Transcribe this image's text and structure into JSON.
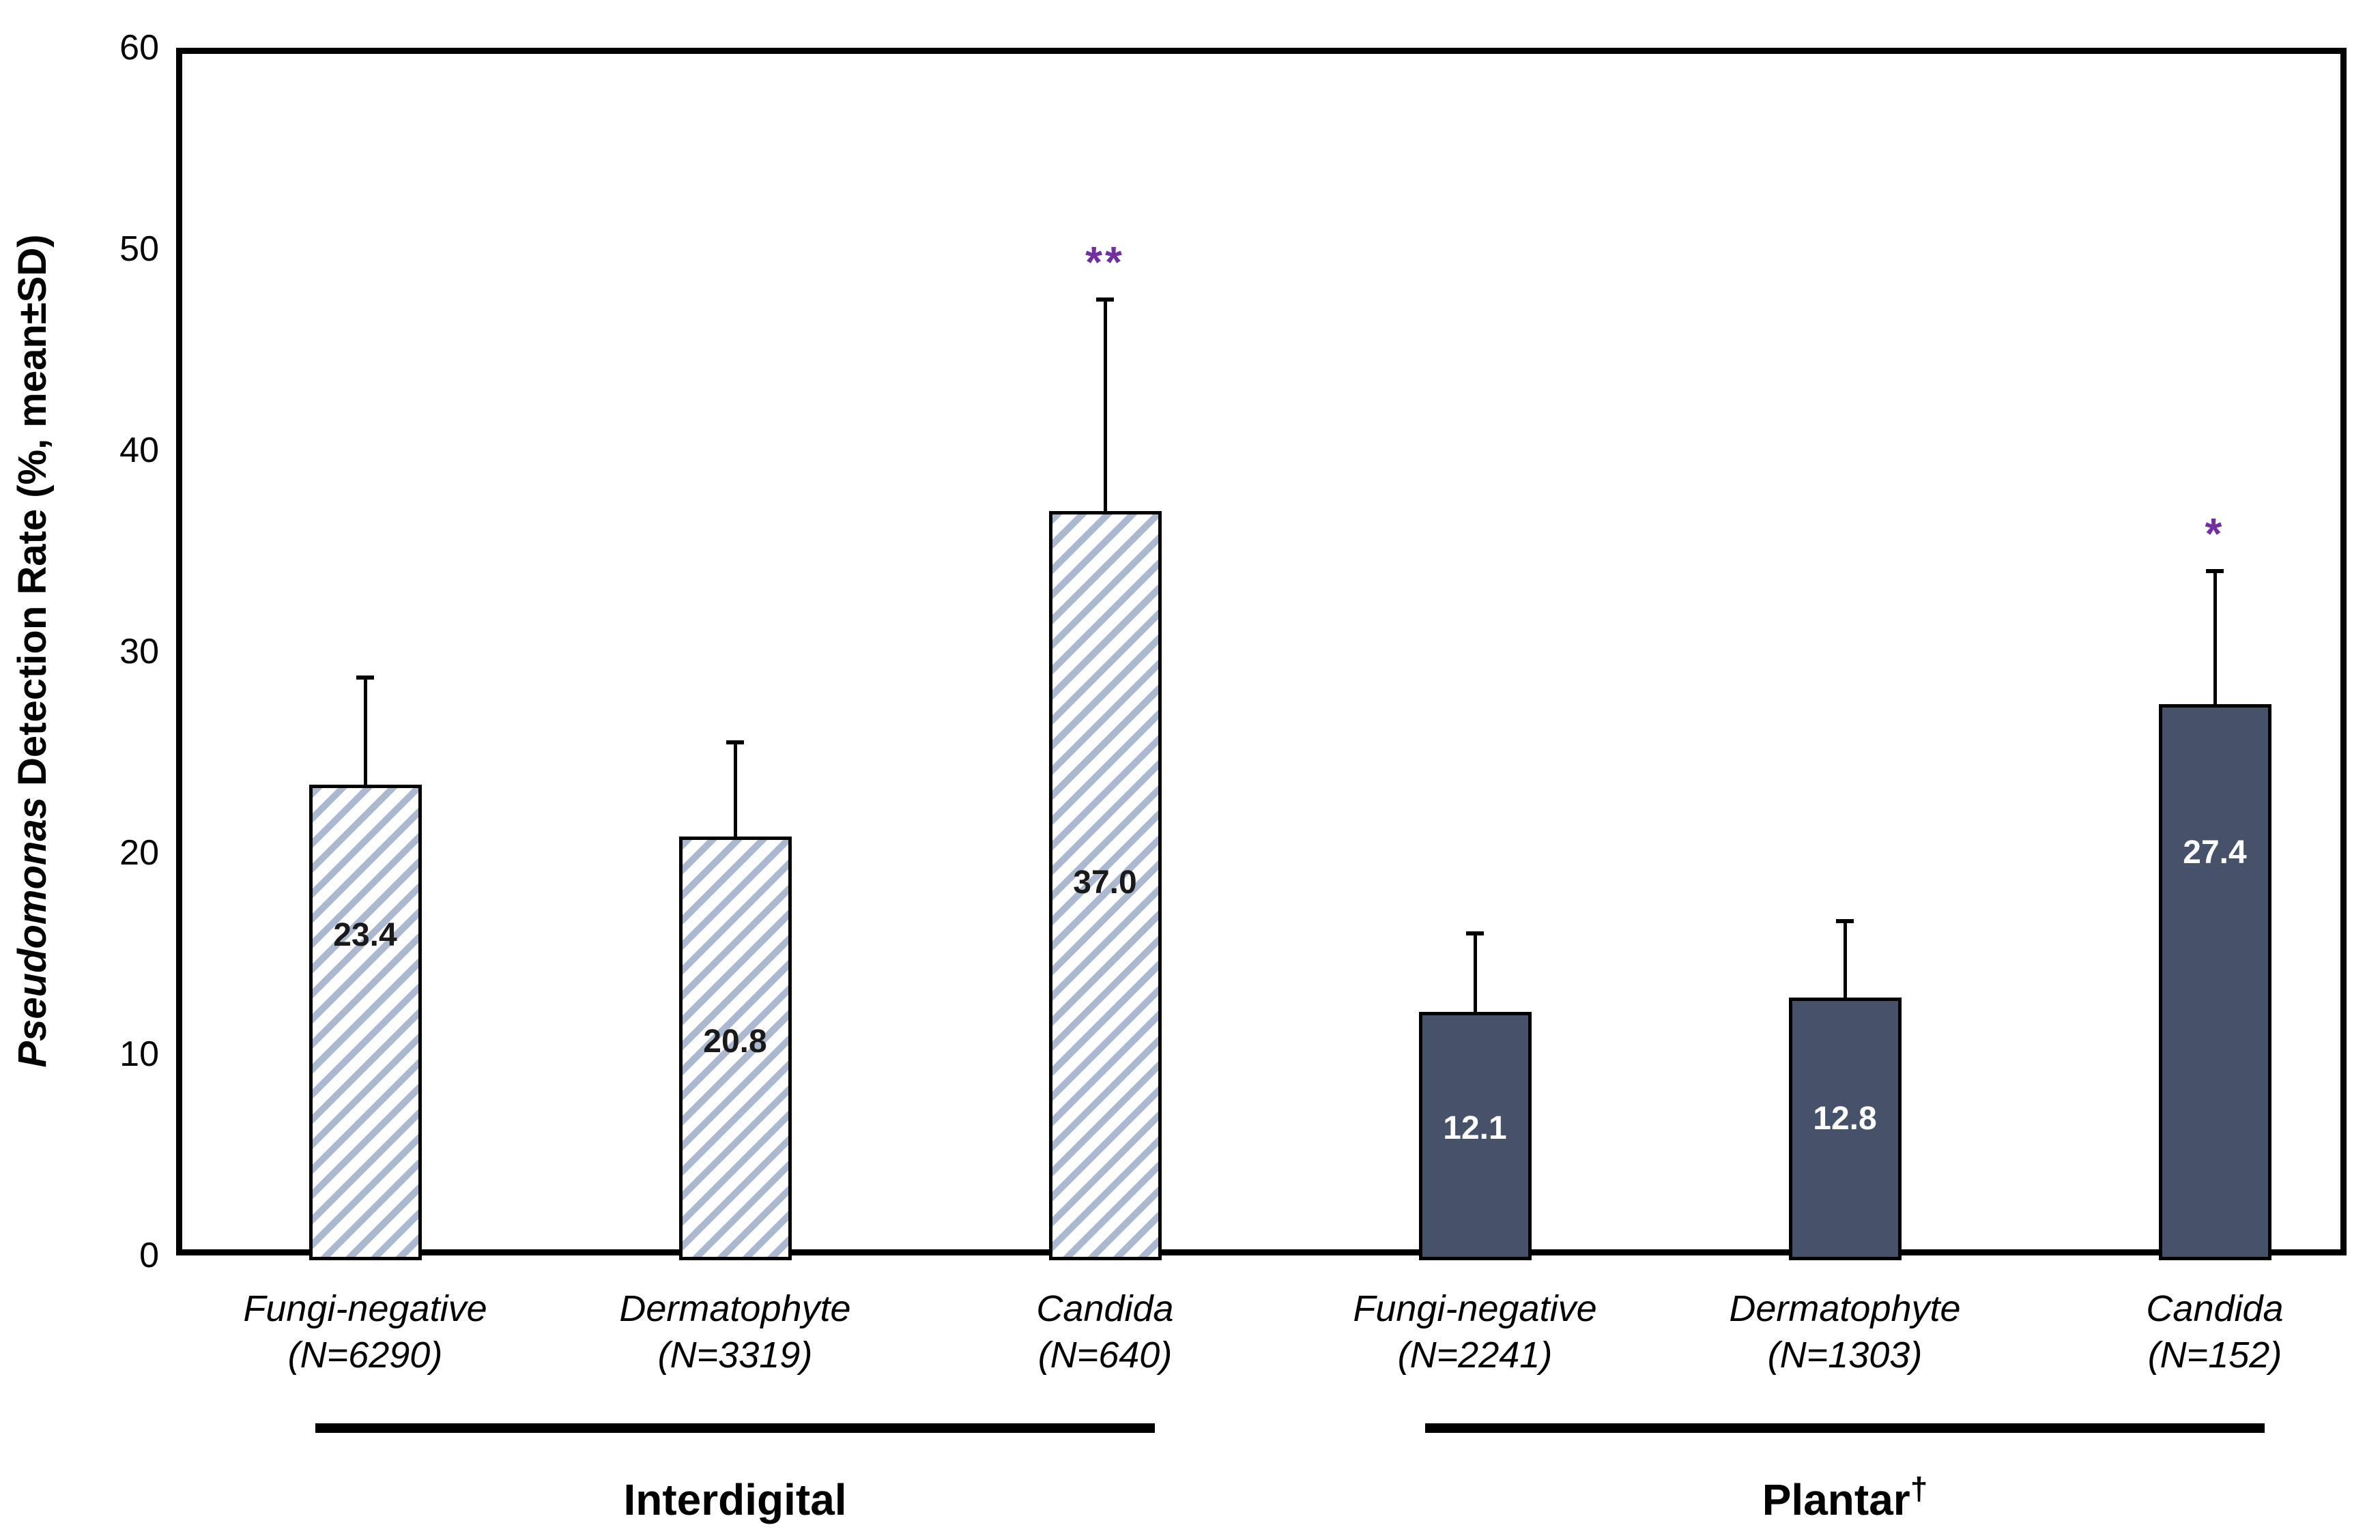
{
  "chart_data": {
    "type": "bar",
    "title": "",
    "y_axis": {
      "label_italic": "Pseudomonas",
      "label_rest": " Detection Rate (%, mean±SD)",
      "ticks": [
        0,
        10,
        20,
        30,
        40,
        50,
        60
      ],
      "min": 0,
      "max": 60,
      "grid": false
    },
    "legend": "none",
    "groups": [
      {
        "label": "Interdigital",
        "label_suffix": "",
        "bar_style": "hatched",
        "bars": [
          {
            "category": "Fungi-negative",
            "n_label": "(N=6290)",
            "value": 23.4,
            "value_label": "23.4",
            "error_top": 28.7,
            "annotation": "",
            "label_frac": 0.68
          },
          {
            "category": "Dermatophyte",
            "n_label": "(N=3319)",
            "value": 20.8,
            "value_label": "20.8",
            "error_top": 25.5,
            "annotation": "",
            "label_frac": 0.51
          },
          {
            "category": "Candida",
            "n_label": "(N=640)",
            "value": 37.0,
            "value_label": "37.0",
            "error_top": 47.5,
            "annotation": "**",
            "label_frac": 0.5
          }
        ]
      },
      {
        "label": "Plantar",
        "label_suffix": "†",
        "bar_style": "solid",
        "bars": [
          {
            "category": "Fungi-negative",
            "n_label": "(N=2241)",
            "value": 12.1,
            "value_label": "12.1",
            "error_top": 16.0,
            "annotation": "",
            "label_frac": 0.52
          },
          {
            "category": "Dermatophyte",
            "n_label": "(N=1303)",
            "value": 12.8,
            "value_label": "12.8",
            "error_top": 16.6,
            "annotation": "",
            "label_frac": 0.53
          },
          {
            "category": "Candida",
            "n_label": "(N=152)",
            "value": 27.4,
            "value_label": "27.4",
            "error_top": 34.0,
            "annotation": "*",
            "label_frac": 0.73
          }
        ]
      }
    ],
    "colors": {
      "hatch_stripe": "#aab8d0",
      "hatch_bg": "#ffffff",
      "solid_bar": "#45526a",
      "bar_border": "#000000",
      "annotation": "#7030a0",
      "axis": "#000000",
      "label_on_hatched": "#1a1a1a",
      "label_on_solid": "#ffffff"
    }
  }
}
